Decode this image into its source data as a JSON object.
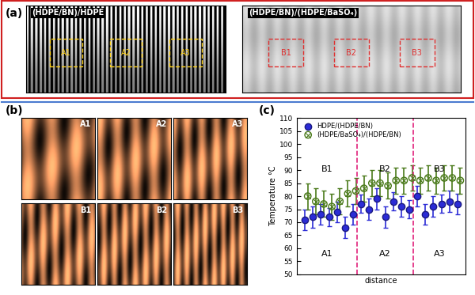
{
  "panel_a": {
    "label": "(a)",
    "images": [
      {
        "title": "(HDPE/BN)/HDPE",
        "regions": [
          "A1",
          "A2",
          "A3"
        ]
      },
      {
        "title": "(HDPE/BN)/(HDPE/BaSO₄)",
        "regions": [
          "B1",
          "B2",
          "B3"
        ]
      }
    ]
  },
  "panel_b": {
    "label": "(b)",
    "images": [
      "A1",
      "A2",
      "A3",
      "B1",
      "B2",
      "B3"
    ]
  },
  "chart_data": {
    "label": "(c)",
    "type": "scatter",
    "xlabel": "distance",
    "ylabel": "Temperature °C",
    "xlim": [
      0,
      21
    ],
    "xticks": [],
    "ylim": [
      50,
      110
    ],
    "yticks": [
      50,
      55,
      60,
      65,
      70,
      75,
      80,
      85,
      90,
      95,
      100,
      105,
      110
    ],
    "tick_labels": "y",
    "legend": "upper left",
    "dividers": [
      7.5,
      14.5
    ],
    "region_labels_top": [
      "B1",
      "B2",
      "B3"
    ],
    "region_labels_bottom": [
      "A1",
      "A2",
      "A3"
    ],
    "series": [
      {
        "name": "HDPE/(HDPE/BN)",
        "color": "#2b2bd6",
        "marker": "circle",
        "x": [
          1,
          2,
          3,
          4,
          5,
          6,
          7,
          8,
          9,
          10,
          11,
          12,
          13,
          14,
          15,
          16,
          17,
          18,
          19,
          20
        ],
        "values": [
          71,
          72,
          73,
          72,
          74,
          68,
          73,
          77,
          75,
          79,
          72,
          78,
          76,
          75,
          80,
          73,
          76,
          77,
          78,
          77
        ],
        "errors": [
          4,
          4,
          4,
          3.5,
          4,
          4,
          4,
          3.5,
          4,
          4,
          4,
          3.5,
          4,
          3.5,
          4,
          4,
          4,
          3.5,
          4,
          4
        ]
      },
      {
        "name": "(HDPE/BaSO₄)/(HDPE/BN)",
        "color": "#4a7a1a",
        "marker": "circle_x",
        "x": [
          1.35,
          2.35,
          3.35,
          4.35,
          5.35,
          6.35,
          7.35,
          8.35,
          9.35,
          10.35,
          11.35,
          12.35,
          13.35,
          14.35,
          15.35,
          16.35,
          17.35,
          18.35,
          19.35,
          20.35
        ],
        "values": [
          80,
          78,
          77,
          76,
          78,
          81,
          82,
          83,
          85,
          85,
          84,
          86,
          86,
          87,
          86,
          87,
          86,
          87,
          87,
          86
        ],
        "errors": [
          5,
          5,
          5,
          5,
          5,
          5,
          5,
          5,
          5,
          5,
          5,
          5,
          5,
          5,
          5,
          5,
          5,
          5,
          5,
          5
        ]
      }
    ]
  }
}
